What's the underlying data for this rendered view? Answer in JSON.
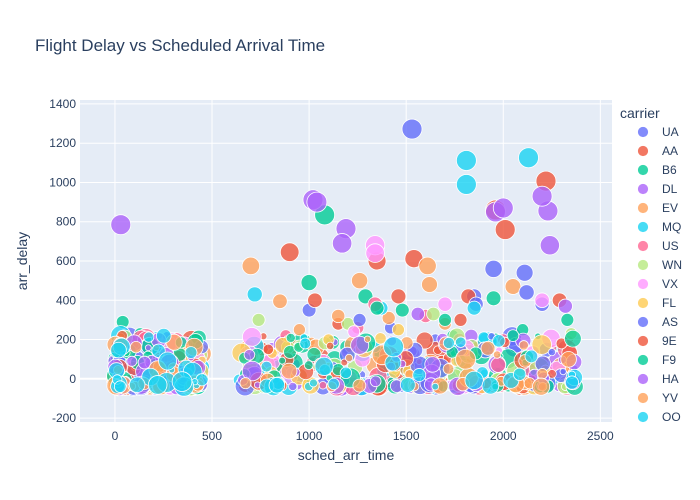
{
  "chart_data": {
    "type": "scatter",
    "title": "Flight Delay vs Scheduled Arrival Time",
    "xlabel": "sched_arr_time",
    "ylabel": "arr_delay",
    "xlim": [
      -180,
      2560
    ],
    "ylim": [
      -220,
      1420
    ],
    "x_ticks": [
      0,
      500,
      1000,
      1500,
      2000,
      2500
    ],
    "y_ticks": [
      -200,
      0,
      200,
      400,
      600,
      800,
      1000,
      1200,
      1400
    ],
    "grid": true,
    "legend_title": "carrier",
    "legend_position": "right",
    "series": [
      {
        "name": "UA",
        "color": "#636efa",
        "points": [
          [
            1530,
            1272
          ],
          [
            2110,
            540
          ],
          [
            1950,
            560
          ],
          [
            1000,
            350
          ],
          [
            1420,
            260
          ],
          [
            1650,
            200
          ],
          [
            1850,
            420
          ],
          [
            2200,
            380
          ],
          [
            1200,
            150
          ],
          [
            1480,
            95
          ]
        ]
      },
      {
        "name": "AA",
        "color": "#EF553B",
        "points": [
          [
            2220,
            1007
          ],
          [
            1960,
            860
          ],
          [
            1540,
            612
          ],
          [
            900,
            645
          ],
          [
            1820,
            420
          ],
          [
            2010,
            760
          ],
          [
            1780,
            300
          ],
          [
            1350,
            600
          ],
          [
            1150,
            280
          ],
          [
            1000,
            180
          ],
          [
            2290,
            400
          ],
          [
            70,
            -60
          ]
        ]
      },
      {
        "name": "B6",
        "color": "#00cc96",
        "points": [
          [
            1080,
            835
          ],
          [
            40,
            290
          ],
          [
            130,
            230
          ],
          [
            1000,
            490
          ],
          [
            1480,
            350
          ],
          [
            2330,
            300
          ],
          [
            2100,
            250
          ],
          [
            340,
            165
          ],
          [
            440,
            130
          ],
          [
            1740,
            220
          ],
          [
            1290,
            420
          ],
          [
            1950,
            410
          ]
        ]
      },
      {
        "name": "DL",
        "color": "#ab63fa",
        "points": [
          [
            30,
            785
          ],
          [
            1190,
            765
          ],
          [
            1020,
            912
          ],
          [
            2230,
            855
          ],
          [
            2240,
            680
          ],
          [
            1960,
            850
          ],
          [
            1040,
            900
          ],
          [
            2000,
            870
          ],
          [
            2200,
            930
          ],
          [
            1170,
            690
          ],
          [
            1450,
            120
          ],
          [
            1530,
            140
          ]
        ]
      },
      {
        "name": "EV",
        "color": "#FFA15A",
        "points": [
          [
            1610,
            575
          ],
          [
            1260,
            500
          ],
          [
            850,
            395
          ],
          [
            1410,
            310
          ],
          [
            2050,
            470
          ],
          [
            1700,
            280
          ],
          [
            950,
            250
          ]
        ]
      },
      {
        "name": "MQ",
        "color": "#19d3f3",
        "points": [
          [
            1810,
            1112
          ],
          [
            1810,
            990
          ],
          [
            2130,
            1126
          ],
          [
            720,
            430
          ],
          [
            1370,
            360
          ],
          [
            1900,
            210
          ]
        ]
      },
      {
        "name": "US",
        "color": "#FF6692",
        "points": [
          [
            1340,
            380
          ],
          [
            1600,
            320
          ],
          [
            1250,
            260
          ],
          [
            2000,
            200
          ],
          [
            880,
            220
          ]
        ]
      },
      {
        "name": "WN",
        "color": "#B6E880",
        "points": [
          [
            740,
            300
          ],
          [
            1200,
            280
          ],
          [
            1640,
            330
          ],
          [
            950,
            170
          ],
          [
            2350,
            230
          ]
        ]
      },
      {
        "name": "VX",
        "color": "#FF97FF",
        "points": [
          [
            1340,
            680
          ],
          [
            1340,
            640
          ],
          [
            2200,
            400
          ],
          [
            1700,
            380
          ],
          [
            1230,
            240
          ]
        ]
      },
      {
        "name": "FL",
        "color": "#FECB52",
        "points": [
          [
            1460,
            250
          ],
          [
            1100,
            200
          ],
          [
            1900,
            160
          ],
          [
            810,
            130
          ]
        ]
      },
      {
        "name": "AS",
        "color": "#636efa",
        "points": [
          [
            2120,
            440
          ],
          [
            1860,
            380
          ],
          [
            1260,
            300
          ]
        ]
      },
      {
        "name": "9E",
        "color": "#EF553B",
        "points": [
          [
            1460,
            420
          ],
          [
            1030,
            400
          ],
          [
            2300,
            180
          ],
          [
            790,
            150
          ]
        ]
      },
      {
        "name": "F9",
        "color": "#00cc96",
        "points": [
          [
            1350,
            360
          ],
          [
            1700,
            300
          ],
          [
            2050,
            220
          ]
        ]
      },
      {
        "name": "HA",
        "color": "#ab63fa",
        "points": [
          [
            1450,
            110
          ],
          [
            1560,
            330
          ],
          [
            2320,
            370
          ]
        ]
      },
      {
        "name": "YV",
        "color": "#FFA15A",
        "points": [
          [
            1620,
            480
          ],
          [
            1150,
            320
          ],
          [
            700,
            575
          ]
        ]
      },
      {
        "name": "OO",
        "color": "#19d3f3",
        "points": [
          [
            1850,
            360
          ],
          [
            980,
            180
          ]
        ]
      }
    ]
  }
}
